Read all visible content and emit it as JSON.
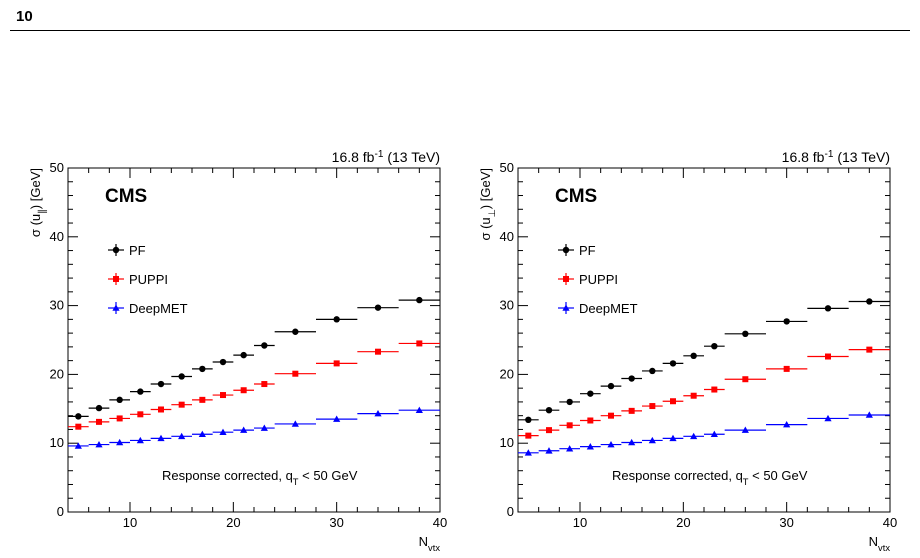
{
  "page": {
    "number": "10"
  },
  "chart_data": [
    {
      "type": "scatter",
      "panel_label": "CMS",
      "lumi": "16.8 fb",
      "lumi_sup": "-1",
      "lumi_tail": " (13 TeV)",
      "ylabel_main": "σ (u",
      "ylabel_sub": "∥",
      "ylabel_tail": ") [GeV]",
      "xlabel_main": "N",
      "xlabel_sub": "vtx",
      "annotation_main": "Response corrected, q",
      "annotation_sub": "T",
      "annotation_tail": " < 50 GeV",
      "xlim": [
        4,
        40
      ],
      "ylim": [
        0,
        50
      ],
      "xticks": [
        "10",
        "20",
        "30",
        "40"
      ],
      "yticks": [
        "0",
        "10",
        "20",
        "30",
        "40",
        "50"
      ],
      "legend_position": "top-left",
      "series": [
        {
          "name": "PF",
          "color": "#000000",
          "marker": "circle",
          "x": [
            5,
            7,
            9,
            11,
            13,
            15,
            17,
            19,
            21,
            23,
            26,
            30,
            34,
            38
          ],
          "xerr": [
            1,
            1,
            1,
            1,
            1,
            1,
            1,
            1,
            1,
            1,
            2,
            2,
            2,
            2
          ],
          "y": [
            13.9,
            15.1,
            16.3,
            17.5,
            18.6,
            19.7,
            20.8,
            21.8,
            22.8,
            24.2,
            26.2,
            28.0,
            29.7,
            30.8
          ]
        },
        {
          "name": "PUPPI",
          "color": "#ff0000",
          "marker": "square",
          "x": [
            5,
            7,
            9,
            11,
            13,
            15,
            17,
            19,
            21,
            23,
            26,
            30,
            34,
            38
          ],
          "xerr": [
            1,
            1,
            1,
            1,
            1,
            1,
            1,
            1,
            1,
            1,
            2,
            2,
            2,
            2
          ],
          "y": [
            12.4,
            13.1,
            13.6,
            14.2,
            14.9,
            15.6,
            16.3,
            17.0,
            17.7,
            18.6,
            20.1,
            21.6,
            23.3,
            24.5
          ]
        },
        {
          "name": "DeepMET",
          "color": "#0000ff",
          "marker": "triangle",
          "x": [
            5,
            7,
            9,
            11,
            13,
            15,
            17,
            19,
            21,
            23,
            26,
            30,
            34,
            38
          ],
          "xerr": [
            1,
            1,
            1,
            1,
            1,
            1,
            1,
            1,
            1,
            1,
            2,
            2,
            2,
            2
          ],
          "y": [
            9.6,
            9.8,
            10.1,
            10.4,
            10.7,
            11.0,
            11.3,
            11.6,
            11.9,
            12.2,
            12.8,
            13.5,
            14.3,
            14.8
          ]
        }
      ]
    },
    {
      "type": "scatter",
      "panel_label": "CMS",
      "lumi": "16.8 fb",
      "lumi_sup": "-1",
      "lumi_tail": " (13 TeV)",
      "ylabel_main": "σ (u",
      "ylabel_sub": "⊥",
      "ylabel_tail": ") [GeV]",
      "xlabel_main": "N",
      "xlabel_sub": "vtx",
      "annotation_main": "Response corrected, q",
      "annotation_sub": "T",
      "annotation_tail": " < 50 GeV",
      "xlim": [
        4,
        40
      ],
      "ylim": [
        0,
        50
      ],
      "xticks": [
        "10",
        "20",
        "30",
        "40"
      ],
      "yticks": [
        "0",
        "10",
        "20",
        "30",
        "40",
        "50"
      ],
      "legend_position": "top-left",
      "series": [
        {
          "name": "PF",
          "color": "#000000",
          "marker": "circle",
          "x": [
            5,
            7,
            9,
            11,
            13,
            15,
            17,
            19,
            21,
            23,
            26,
            30,
            34,
            38
          ],
          "xerr": [
            1,
            1,
            1,
            1,
            1,
            1,
            1,
            1,
            1,
            1,
            2,
            2,
            2,
            2
          ],
          "y": [
            13.4,
            14.8,
            16.0,
            17.2,
            18.3,
            19.4,
            20.5,
            21.6,
            22.7,
            24.1,
            25.9,
            27.7,
            29.6,
            30.6
          ]
        },
        {
          "name": "PUPPI",
          "color": "#ff0000",
          "marker": "square",
          "x": [
            5,
            7,
            9,
            11,
            13,
            15,
            17,
            19,
            21,
            23,
            26,
            30,
            34,
            38
          ],
          "xerr": [
            1,
            1,
            1,
            1,
            1,
            1,
            1,
            1,
            1,
            1,
            2,
            2,
            2,
            2
          ],
          "y": [
            11.1,
            11.9,
            12.6,
            13.3,
            14.0,
            14.7,
            15.4,
            16.1,
            16.9,
            17.8,
            19.3,
            20.8,
            22.6,
            23.6
          ]
        },
        {
          "name": "DeepMET",
          "color": "#0000ff",
          "marker": "triangle",
          "x": [
            5,
            7,
            9,
            11,
            13,
            15,
            17,
            19,
            21,
            23,
            26,
            30,
            34,
            38
          ],
          "xerr": [
            1,
            1,
            1,
            1,
            1,
            1,
            1,
            1,
            1,
            1,
            2,
            2,
            2,
            2
          ],
          "y": [
            8.6,
            8.9,
            9.2,
            9.5,
            9.8,
            10.1,
            10.4,
            10.7,
            11.0,
            11.3,
            11.9,
            12.7,
            13.6,
            14.1
          ]
        }
      ]
    }
  ]
}
